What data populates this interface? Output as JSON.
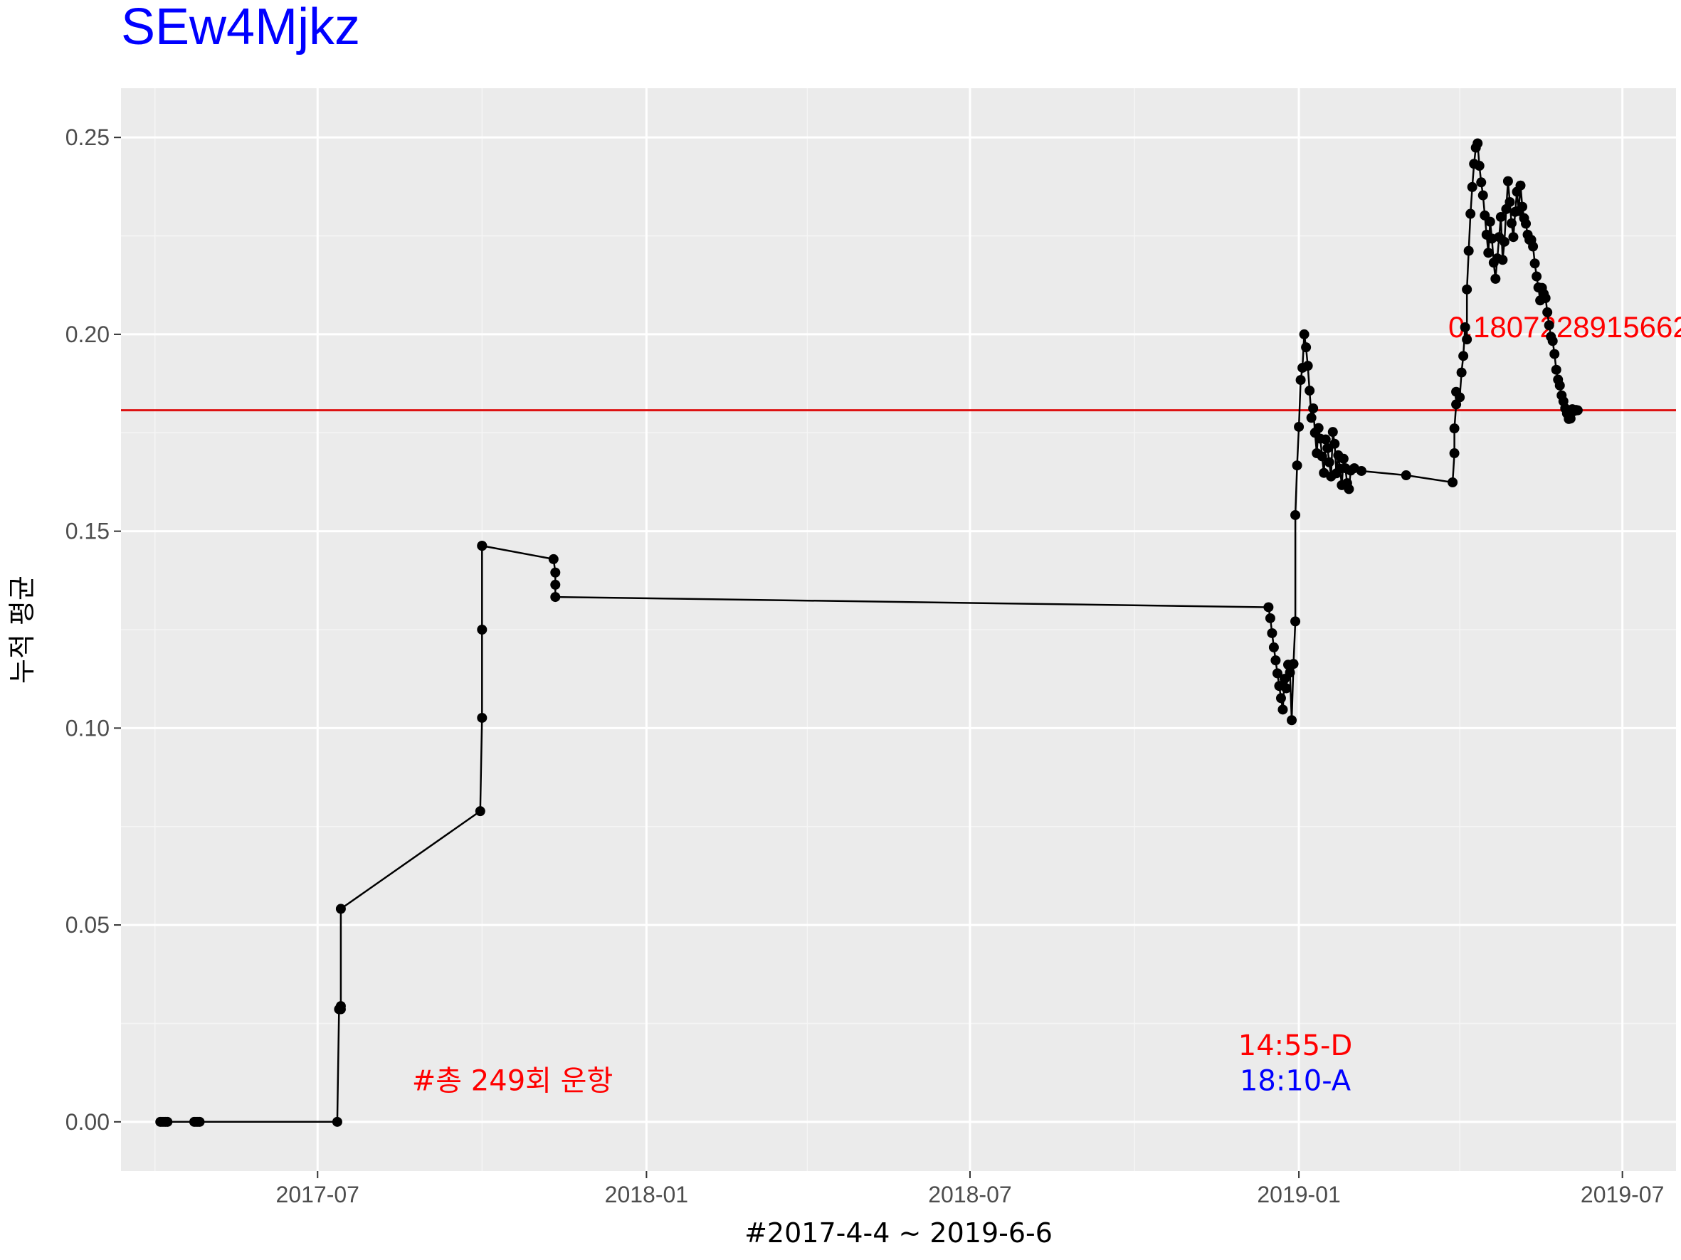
{
  "colors": {
    "title": "#0000ff",
    "panel_bg": "#ebebeb",
    "grid_major": "#ffffff",
    "grid_minor": "#f5f5f5",
    "series": "#000000",
    "reference_line": "#dd1111",
    "annotation_red": "#ff0000",
    "annotation_blue": "#0000ff"
  },
  "chart_data": {
    "type": "line",
    "title": "SEw4Mjkz",
    "xlabel": "#2017-4-4 ~ 2019-6-6",
    "ylabel": "누적 평균",
    "xlim": [
      "2017-03-13",
      "2019-07-31"
    ],
    "ylim": [
      -0.0125,
      0.2625
    ],
    "x_ticks": [
      "2017-07",
      "2018-01",
      "2018-07",
      "2019-01",
      "2019-07"
    ],
    "y_ticks": [
      "0.00",
      "0.05",
      "0.10",
      "0.15",
      "0.20",
      "0.25"
    ],
    "grid": true,
    "reference_line": {
      "y": 0.1807228916,
      "label": "0.1807228915662"
    },
    "annotations": [
      {
        "text": "#총 249회 운항",
        "x": "2017-10-18",
        "y": 0.0105,
        "color": "#ff0000"
      },
      {
        "text": "14:55-D",
        "x": "2018-12-30",
        "y": 0.0195,
        "color": "#ff0000"
      },
      {
        "text": "18:10-A",
        "x": "2018-12-30",
        "y": 0.0105,
        "color": "#0000ff"
      }
    ],
    "series": [
      {
        "x": [
          "2017-04-04",
          "2017-04-05",
          "2017-04-06",
          "2017-04-07",
          "2017-04-08",
          "2017-04-23",
          "2017-04-24",
          "2017-04-25",
          "2017-04-26",
          "2017-07-12",
          "2017-07-13",
          "2017-07-14",
          "2017-07-14",
          "2017-07-14",
          "2017-09-30",
          "2017-10-01",
          "2017-10-01",
          "2017-10-01",
          "2017-10-01",
          "2017-11-10",
          "2017-11-11",
          "2017-11-11",
          "2017-11-11",
          "2018-12-15",
          "2018-12-16",
          "2018-12-17",
          "2018-12-18",
          "2018-12-19",
          "2018-12-20",
          "2018-12-21",
          "2018-12-22",
          "2018-12-23",
          "2018-12-24",
          "2018-12-25",
          "2018-12-26",
          "2018-12-27",
          "2018-12-28",
          "2018-12-29",
          "2018-12-30",
          "2018-12-30",
          "2018-12-31",
          "2019-01-01",
          "2019-01-02",
          "2019-01-03",
          "2019-01-04",
          "2019-01-05",
          "2019-01-06",
          "2019-01-07",
          "2019-01-08",
          "2019-01-09",
          "2019-01-10",
          "2019-01-11",
          "2019-01-12",
          "2019-01-13",
          "2019-01-14",
          "2019-01-15",
          "2019-01-16",
          "2019-01-17",
          "2019-01-18",
          "2019-01-19",
          "2019-01-20",
          "2019-01-21",
          "2019-01-22",
          "2019-01-23",
          "2019-01-24",
          "2019-01-25",
          "2019-01-26",
          "2019-01-27",
          "2019-01-28",
          "2019-01-29",
          "2019-01-30",
          "2019-02-01",
          "2019-02-05",
          "2019-03-02",
          "2019-03-28",
          "2019-03-29",
          "2019-03-29",
          "2019-03-30",
          "2019-03-30",
          "2019-04-01",
          "2019-04-02",
          "2019-04-03",
          "2019-04-04",
          "2019-04-05",
          "2019-04-05",
          "2019-04-06",
          "2019-04-07",
          "2019-04-08",
          "2019-04-09",
          "2019-04-10",
          "2019-04-11",
          "2019-04-12",
          "2019-04-13",
          "2019-04-14",
          "2019-04-15",
          "2019-04-16",
          "2019-04-17",
          "2019-04-18",
          "2019-04-19",
          "2019-04-20",
          "2019-04-21",
          "2019-04-22",
          "2019-04-23",
          "2019-04-24",
          "2019-04-25",
          "2019-04-26",
          "2019-04-27",
          "2019-04-28",
          "2019-04-29",
          "2019-04-30",
          "2019-05-01",
          "2019-05-02",
          "2019-05-03",
          "2019-05-04",
          "2019-05-05",
          "2019-05-06",
          "2019-05-07",
          "2019-05-08",
          "2019-05-09",
          "2019-05-10",
          "2019-05-11",
          "2019-05-12",
          "2019-05-13",
          "2019-05-14",
          "2019-05-15",
          "2019-05-16",
          "2019-05-17",
          "2019-05-18",
          "2019-05-19",
          "2019-05-20",
          "2019-05-21",
          "2019-05-22",
          "2019-05-23",
          "2019-05-24",
          "2019-05-25",
          "2019-05-26",
          "2019-05-27",
          "2019-05-28",
          "2019-05-29",
          "2019-05-30",
          "2019-05-31",
          "2019-06-01",
          "2019-06-02",
          "2019-06-03",
          "2019-06-04",
          "2019-06-05",
          "2019-06-06"
        ],
        "y": [
          0.0,
          0.0,
          0.0,
          0.0,
          0.0,
          0.0,
          0.0,
          0.0,
          0.0,
          0.0,
          0.0286,
          0.0294,
          0.0286,
          0.0541,
          0.0789,
          0.1026,
          0.125,
          0.1463,
          0.1463,
          0.1429,
          0.1395,
          0.1364,
          0.1333,
          0.1307,
          0.1279,
          0.1241,
          0.1205,
          0.1172,
          0.1139,
          0.1107,
          0.1076,
          0.1047,
          0.1125,
          0.1101,
          0.1161,
          0.1141,
          0.102,
          0.1163,
          0.1271,
          0.1541,
          0.1667,
          0.1765,
          0.1884,
          0.1915,
          0.2,
          0.1967,
          0.192,
          0.1857,
          0.1788,
          0.1812,
          0.175,
          0.1698,
          0.1762,
          0.1735,
          0.169,
          0.1648,
          0.1733,
          0.1711,
          0.1675,
          0.1639,
          0.1752,
          0.1722,
          0.1647,
          0.1693,
          0.1659,
          0.1617,
          0.1684,
          0.166,
          0.1622,
          0.1607,
          0.1654,
          0.166,
          0.1653,
          0.1642,
          0.1624,
          0.1698,
          0.1761,
          0.1822,
          0.1854,
          0.184,
          0.1903,
          0.1945,
          0.2018,
          0.1987,
          0.2114,
          0.2212,
          0.2306,
          0.2374,
          0.2433,
          0.2474,
          0.2485,
          0.2428,
          0.2386,
          0.2353,
          0.2302,
          0.2253,
          0.2207,
          0.2286,
          0.2243,
          0.2182,
          0.2141,
          0.2193,
          0.2247,
          0.2298,
          0.2189,
          0.2235,
          0.2318,
          0.2389,
          0.2336,
          0.2282,
          0.2247,
          0.2311,
          0.2362,
          0.2313,
          0.2378,
          0.2324,
          0.2295,
          0.2281,
          0.2253,
          0.224,
          0.224,
          0.2223,
          0.218,
          0.2147,
          0.2119,
          0.2086,
          0.2118,
          0.2103,
          0.2092,
          0.2056,
          0.2023,
          0.1994,
          0.1983,
          0.195,
          0.191,
          0.1885,
          0.187,
          0.1845,
          0.183,
          0.1812,
          0.1799,
          0.1785,
          0.1786,
          0.181,
          0.1805,
          0.1808,
          0.1807
        ]
      }
    ]
  }
}
